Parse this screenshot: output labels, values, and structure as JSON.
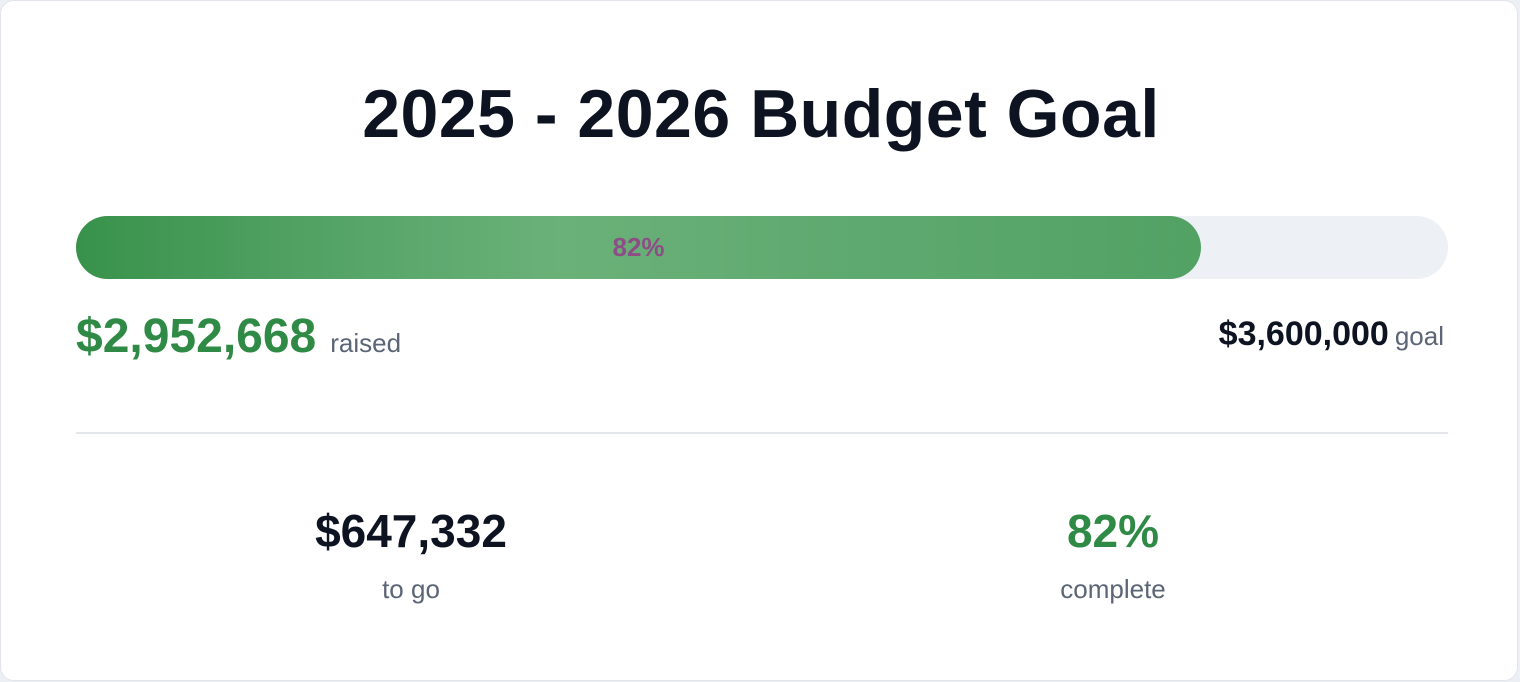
{
  "title": "2025 - 2026 Budget Goal",
  "progress": {
    "fraction": 0.82,
    "label": "82%"
  },
  "raised": {
    "amount": "$2,952,668",
    "label": "raised"
  },
  "goal": {
    "amount": "$3,600,000",
    "label": "goal"
  },
  "stats": {
    "to_go": {
      "value": "$647,332",
      "label": "to go"
    },
    "complete": {
      "value": "82%",
      "label": "complete"
    }
  },
  "colors": {
    "accent_green": "#2f8a46",
    "bar_label": "#8e4d86",
    "text_dark": "#0d1321",
    "text_muted": "#5b6576",
    "track": "#edf0f5"
  }
}
